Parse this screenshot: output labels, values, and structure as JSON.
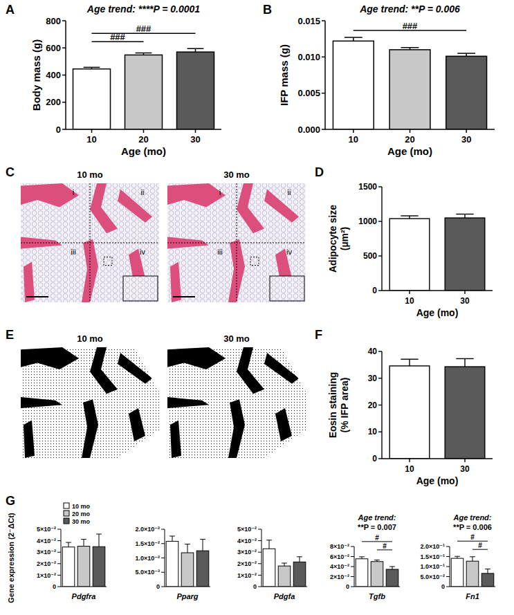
{
  "chart_data": [
    {
      "panel": "A",
      "type": "bar",
      "title": "Age trend: ****P = 0.0001",
      "xlabel": "Age (mo)",
      "ylabel": "Body mass (g)",
      "categories": [
        "10",
        "20",
        "30"
      ],
      "values": [
        445,
        548,
        570
      ],
      "errors": [
        12,
        15,
        25
      ],
      "colors": [
        "#ffffff",
        "#c8c8c8",
        "#595959"
      ],
      "ylim": [
        0,
        800
      ],
      "yticks": [
        0,
        200,
        400,
        600,
        800
      ],
      "significance": [
        {
          "from": 0,
          "to": 1,
          "label": "###"
        },
        {
          "from": 0,
          "to": 2,
          "label": "###"
        }
      ]
    },
    {
      "panel": "B",
      "type": "bar",
      "title": "Age trend: **P = 0.006",
      "xlabel": "Age (mo)",
      "ylabel": "IFP mass (g)",
      "categories": [
        "10",
        "20",
        "30"
      ],
      "values": [
        0.0122,
        0.011,
        0.0101
      ],
      "errors": [
        0.0005,
        0.0003,
        0.0004
      ],
      "colors": [
        "#ffffff",
        "#c8c8c8",
        "#595959"
      ],
      "ylim": [
        0,
        0.015
      ],
      "yticks": [
        {
          "value": 0,
          "label": "0.000"
        },
        {
          "value": 0.005,
          "label": "0.005"
        },
        {
          "value": 0.01,
          "label": "0.010"
        },
        {
          "value": 0.015,
          "label": "0.015"
        }
      ],
      "significance": [
        {
          "from": 0,
          "to": 2,
          "label": "###"
        }
      ]
    },
    {
      "panel": "C",
      "type": "micrograph",
      "images": [
        {
          "label": "10 mo",
          "regions": [
            "i",
            "ii",
            "iii",
            "iv"
          ]
        },
        {
          "label": "30 mo",
          "regions": [
            "i",
            "ii",
            "iii",
            "iv"
          ]
        }
      ]
    },
    {
      "panel": "D",
      "type": "bar",
      "xlabel": "Age (mo)",
      "ylabel": [
        "Adipocyte size",
        "(µm²)"
      ],
      "categories": [
        "10",
        "30"
      ],
      "values": [
        1040,
        1050
      ],
      "errors": [
        40,
        55
      ],
      "colors": [
        "#ffffff",
        "#595959"
      ],
      "ylim": [
        0,
        1500
      ],
      "yticks": [
        0,
        500,
        1000,
        1500
      ]
    },
    {
      "panel": "E",
      "type": "binary_image",
      "images": [
        {
          "label": "10 mo"
        },
        {
          "label": "30 mo"
        }
      ]
    },
    {
      "panel": "F",
      "type": "bar",
      "xlabel": "Age (mo)",
      "ylabel": [
        "Eosin staining",
        "(% IFP area)"
      ],
      "categories": [
        "10",
        "30"
      ],
      "values": [
        34.6,
        34.3
      ],
      "errors": [
        2.5,
        3.0
      ],
      "colors": [
        "#ffffff",
        "#595959"
      ],
      "ylim": [
        0,
        40
      ],
      "yticks": [
        0,
        10,
        20,
        30,
        40
      ]
    },
    {
      "panel": "G",
      "type": "bar",
      "ylabel": "Gene expression (2⁻ΔCt)",
      "categories": [
        "Pdgfra"
      ],
      "legend": "top-left",
      "series": [
        {
          "name": "10 mo",
          "color": "#ffffff",
          "values": [
            0.0345
          ],
          "errors": [
            0.004
          ]
        },
        {
          "name": "20 mo",
          "color": "#c8c8c8",
          "values": [
            0.0352
          ],
          "errors": [
            0.006
          ]
        },
        {
          "name": "30 mo",
          "color": "#595959",
          "values": [
            0.0348
          ],
          "errors": [
            0.011
          ]
        }
      ],
      "ylim": [
        0,
        0.05
      ],
      "yticks": [
        0,
        {
          "value": 0.01,
          "label": "1×10⁻²"
        },
        {
          "value": 0.02,
          "label": "2×10⁻²"
        },
        {
          "value": 0.03,
          "label": "3×10⁻²"
        },
        {
          "value": 0.04,
          "label": "4×10⁻²"
        },
        {
          "value": 0.05,
          "label": "5×10⁻²"
        }
      ]
    },
    {
      "type": "bar",
      "categories": [
        "Pparg"
      ],
      "series": [
        {
          "color": "#ffffff",
          "values": [
            0.0158
          ],
          "errors": [
            0.0018
          ]
        },
        {
          "color": "#c8c8c8",
          "values": [
            0.0118
          ],
          "errors": [
            0.003
          ]
        },
        {
          "color": "#595959",
          "values": [
            0.0125
          ],
          "errors": [
            0.004
          ]
        }
      ],
      "ylim": [
        0,
        0.02
      ],
      "yticks": [
        0,
        {
          "value": 0.005,
          "label": "5.0×10⁻³"
        },
        {
          "value": 0.01,
          "label": "1.0×10⁻²"
        },
        {
          "value": 0.015,
          "label": "1.5×10⁻²"
        },
        {
          "value": 0.02,
          "label": "2.0×10⁻²"
        }
      ]
    },
    {
      "type": "bar",
      "categories": [
        "Pdgfa"
      ],
      "series": [
        {
          "color": "#ffffff",
          "values": [
            0.033
          ],
          "errors": [
            0.0075
          ]
        },
        {
          "color": "#c8c8c8",
          "values": [
            0.018
          ],
          "errors": [
            0.0025
          ]
        },
        {
          "color": "#595959",
          "values": [
            0.0215
          ],
          "errors": [
            0.0045
          ]
        }
      ],
      "ylim": [
        0,
        0.05
      ],
      "yticks": [
        0,
        {
          "value": 0.01,
          "label": "1×10⁻²"
        },
        {
          "value": 0.02,
          "label": "2×10⁻²"
        },
        {
          "value": 0.03,
          "label": "3×10⁻²"
        },
        {
          "value": 0.04,
          "label": "4×10⁻²"
        },
        {
          "value": 0.05,
          "label": "5×10⁻²"
        }
      ]
    },
    {
      "type": "bar",
      "title": [
        "Age trend:",
        "**P = 0.007"
      ],
      "categories": [
        "Tgfb"
      ],
      "series": [
        {
          "color": "#ffffff",
          "values": [
            0.0555
          ],
          "errors": [
            0.004
          ]
        },
        {
          "color": "#c8c8c8",
          "values": [
            0.05
          ],
          "errors": [
            0.003
          ]
        },
        {
          "color": "#595959",
          "values": [
            0.0345
          ],
          "errors": [
            0.0055
          ]
        }
      ],
      "ylim": [
        0,
        0.08
      ],
      "yticks": [
        0,
        {
          "value": 0.02,
          "label": "2×10⁻²"
        },
        {
          "value": 0.04,
          "label": "4×10⁻²"
        },
        {
          "value": 0.06,
          "label": "6×10⁻²"
        },
        {
          "value": 0.08,
          "label": "8×10⁻²"
        }
      ],
      "significance": [
        {
          "from": 1,
          "to": 2,
          "label": "#"
        },
        {
          "from": 0,
          "to": 2,
          "label": "#"
        }
      ]
    },
    {
      "type": "bar",
      "title": [
        "Age trend:",
        "**P = 0.006"
      ],
      "categories": [
        "Fn1"
      ],
      "series": [
        {
          "color": "#ffffff",
          "values": [
            0.141
          ],
          "errors": [
            0.01
          ]
        },
        {
          "color": "#c8c8c8",
          "values": [
            0.127
          ],
          "errors": [
            0.022
          ]
        },
        {
          "color": "#595959",
          "values": [
            0.066
          ],
          "errors": [
            0.022
          ]
        }
      ],
      "ylim": [
        0,
        0.2
      ],
      "yticks": [
        0,
        {
          "value": 0.05,
          "label": "5.0×10⁻²"
        },
        {
          "value": 0.1,
          "label": "1.0×10⁻¹"
        },
        {
          "value": 0.15,
          "label": "1.5×10⁻¹"
        },
        {
          "value": 0.2,
          "label": "2.0×10⁻¹"
        }
      ],
      "significance": [
        {
          "from": 1,
          "to": 2,
          "label": "#"
        },
        {
          "from": 0,
          "to": 2,
          "label": "#"
        }
      ]
    }
  ]
}
